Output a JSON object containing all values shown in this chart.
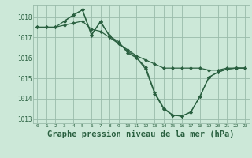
{
  "background_color": "#cce8d8",
  "grid_color": "#99bbaa",
  "line_color": "#2a6040",
  "marker_color": "#2a6040",
  "title": "Graphe pression niveau de la mer (hPa)",
  "title_fontsize": 7.5,
  "ylim": [
    1012.8,
    1018.6
  ],
  "xlim": [
    -0.5,
    23.5
  ],
  "yticks": [
    1013,
    1014,
    1015,
    1016,
    1017,
    1018
  ],
  "xticks": [
    0,
    1,
    2,
    3,
    4,
    5,
    6,
    7,
    8,
    9,
    10,
    11,
    12,
    13,
    14,
    15,
    16,
    17,
    18,
    19,
    20,
    21,
    22,
    23
  ],
  "series1_x": [
    0,
    1,
    2,
    3,
    4,
    5,
    6,
    7,
    8,
    9,
    10,
    11,
    12,
    13,
    14,
    15,
    16,
    17,
    18,
    19,
    20,
    21,
    22,
    23
  ],
  "series1_y": [
    1017.5,
    1017.5,
    1017.5,
    1017.6,
    1017.7,
    1017.8,
    1017.4,
    1017.3,
    1017.0,
    1016.7,
    1016.4,
    1016.1,
    1015.9,
    1015.7,
    1015.5,
    1015.5,
    1015.5,
    1015.5,
    1015.5,
    1015.4,
    1015.4,
    1015.5,
    1015.5,
    1015.5
  ],
  "series2_x": [
    0,
    1,
    2,
    3,
    4,
    5,
    6,
    7,
    8,
    9,
    10,
    11,
    12,
    13,
    14,
    15,
    16,
    17,
    18,
    19,
    20,
    21,
    22,
    23
  ],
  "series2_y": [
    1017.5,
    1017.5,
    1017.5,
    1017.8,
    1018.1,
    1018.35,
    1017.1,
    1017.8,
    1017.05,
    1016.8,
    1016.25,
    1016.0,
    1015.45,
    1014.25,
    1013.5,
    1013.2,
    1013.15,
    1013.35,
    1014.1,
    1015.05,
    1015.3,
    1015.45,
    1015.5,
    1015.5
  ],
  "series3_x": [
    3,
    4,
    5,
    6,
    7,
    8,
    9,
    10,
    11,
    12,
    13,
    14,
    15,
    16,
    17,
    18,
    19,
    20,
    21,
    22,
    23
  ],
  "series3_y": [
    1017.8,
    1018.1,
    1018.35,
    1017.15,
    1017.75,
    1017.1,
    1016.7,
    1016.35,
    1016.0,
    1015.55,
    1014.3,
    1013.55,
    1013.2,
    1013.15,
    1013.35,
    1014.1,
    1015.05,
    1015.3,
    1015.45,
    1015.5,
    1015.5
  ]
}
